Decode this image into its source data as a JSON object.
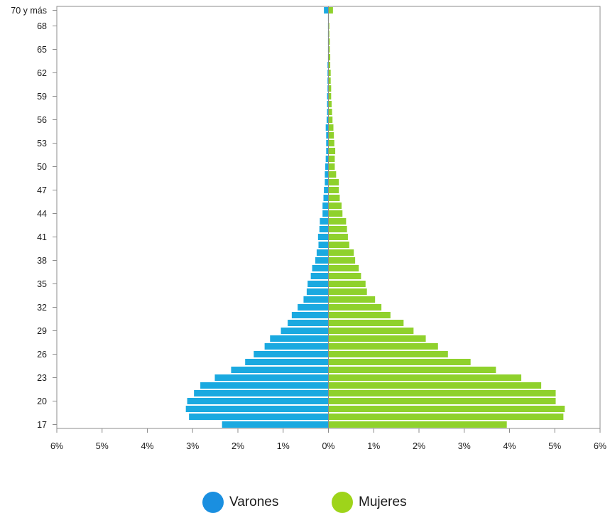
{
  "chart_data": {
    "type": "bar",
    "orientation": "horizontal-butterfly",
    "categories": [
      "17",
      "18",
      "19",
      "20",
      "21",
      "22",
      "23",
      "24",
      "25",
      "26",
      "27",
      "28",
      "29",
      "30",
      "31",
      "32",
      "33",
      "34",
      "35",
      "36",
      "37",
      "38",
      "39",
      "40",
      "41",
      "42",
      "43",
      "44",
      "45",
      "46",
      "47",
      "48",
      "49",
      "50",
      "51",
      "52",
      "53",
      "54",
      "55",
      "56",
      "57",
      "58",
      "59",
      "60",
      "61",
      "62",
      "63",
      "64",
      "65",
      "66",
      "67",
      "68",
      "69",
      "70 y más"
    ],
    "y_tick_labels": [
      "17",
      "20",
      "23",
      "26",
      "29",
      "32",
      "35",
      "38",
      "41",
      "44",
      "47",
      "50",
      "53",
      "56",
      "59",
      "62",
      "65",
      "68",
      "70 y más"
    ],
    "x_tick_labels": [
      "6%",
      "5%",
      "4%",
      "3%",
      "2%",
      "1%",
      "0%",
      "1%",
      "2%",
      "3%",
      "4%",
      "5%",
      "6%"
    ],
    "xlim": [
      -6,
      6
    ],
    "series": [
      {
        "name": "Varones",
        "color": "#1aa9e0",
        "values": [
          2.35,
          3.08,
          3.15,
          3.12,
          2.97,
          2.83,
          2.51,
          2.15,
          1.84,
          1.65,
          1.41,
          1.29,
          1.05,
          0.9,
          0.81,
          0.68,
          0.55,
          0.48,
          0.46,
          0.39,
          0.36,
          0.29,
          0.26,
          0.22,
          0.23,
          0.2,
          0.19,
          0.13,
          0.13,
          0.11,
          0.1,
          0.08,
          0.08,
          0.07,
          0.06,
          0.05,
          0.05,
          0.05,
          0.06,
          0.04,
          0.03,
          0.03,
          0.03,
          0.02,
          0.02,
          0.02,
          0.02,
          0.01,
          0.01,
          0.01,
          0.01,
          0.01,
          0.01,
          0.1
        ]
      },
      {
        "name": "Mujeres",
        "color": "#8fd12c",
        "values": [
          3.94,
          5.19,
          5.22,
          5.02,
          5.02,
          4.7,
          4.26,
          3.7,
          3.14,
          2.64,
          2.42,
          2.15,
          1.88,
          1.66,
          1.37,
          1.17,
          1.03,
          0.85,
          0.82,
          0.72,
          0.67,
          0.59,
          0.56,
          0.46,
          0.43,
          0.41,
          0.39,
          0.31,
          0.29,
          0.25,
          0.23,
          0.23,
          0.17,
          0.14,
          0.14,
          0.15,
          0.13,
          0.12,
          0.11,
          0.09,
          0.08,
          0.07,
          0.06,
          0.06,
          0.05,
          0.05,
          0.04,
          0.04,
          0.03,
          0.03,
          0.02,
          0.02,
          0.01,
          0.1
        ]
      }
    ],
    "grid": false,
    "legend_position": "bottom"
  },
  "legend": {
    "varones_label": "Varones",
    "mujeres_label": "Mujeres",
    "varones_color": "#1a8fe0",
    "mujeres_color": "#9ed41a"
  }
}
